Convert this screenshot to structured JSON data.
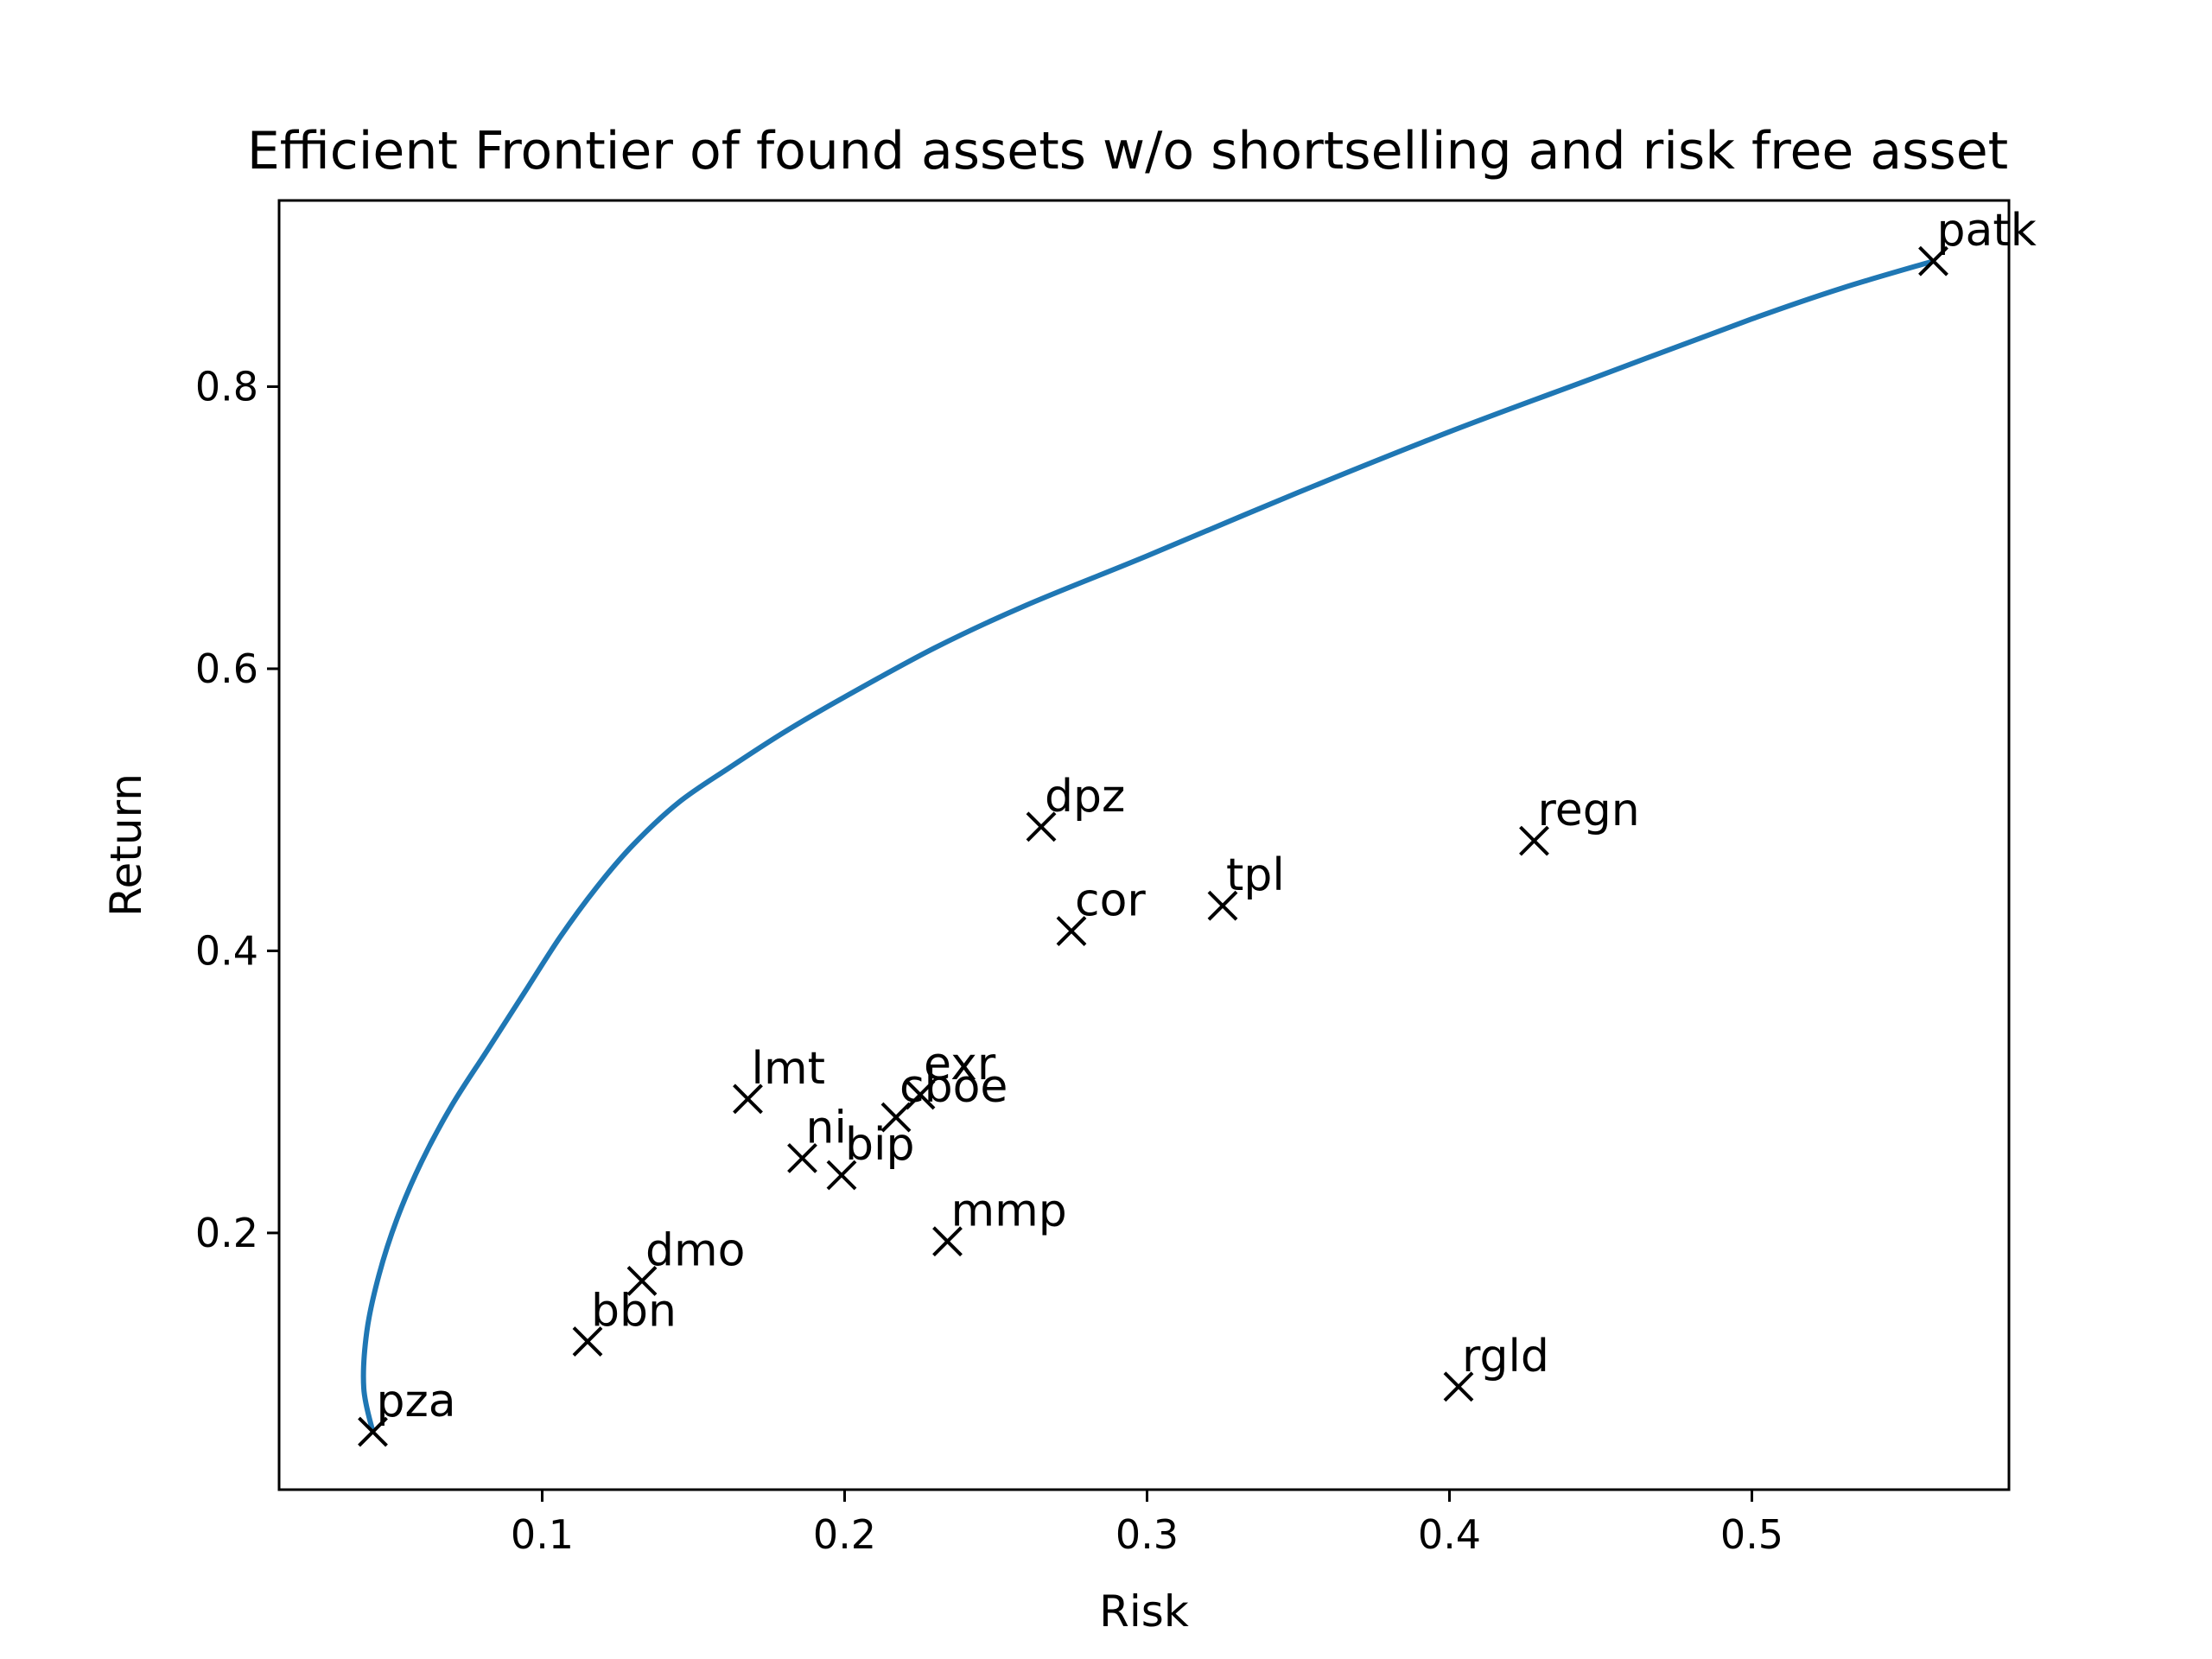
{
  "chart_data": {
    "type": "scatter",
    "title": "Efficient Frontier of found assets w/o shortselling and risk free asset",
    "xlabel": "Risk",
    "ylabel": "Return",
    "xlim": [
      0.013,
      0.585
    ],
    "ylim": [
      0.018,
      0.932
    ],
    "xticks": [
      0.1,
      0.2,
      0.3,
      0.4,
      0.5
    ],
    "yticks": [
      0.2,
      0.4,
      0.6,
      0.8
    ],
    "grid": false,
    "frontier": {
      "color": "#1f77b4",
      "x": [
        0.044,
        0.041,
        0.042,
        0.046,
        0.052,
        0.06,
        0.07,
        0.082,
        0.094,
        0.106,
        0.118,
        0.13,
        0.145,
        0.162,
        0.18,
        0.2,
        0.23,
        0.26,
        0.3,
        0.35,
        0.4,
        0.45,
        0.5,
        0.53,
        0.56
      ],
      "y": [
        0.059,
        0.09,
        0.13,
        0.17,
        0.21,
        0.25,
        0.29,
        0.33,
        0.37,
        0.41,
        0.445,
        0.475,
        0.505,
        0.53,
        0.555,
        0.58,
        0.615,
        0.645,
        0.68,
        0.725,
        0.768,
        0.808,
        0.848,
        0.87,
        0.889
      ]
    },
    "points": [
      {
        "label": "patk",
        "x": 0.56,
        "y": 0.889
      },
      {
        "label": "dpz",
        "x": 0.265,
        "y": 0.488
      },
      {
        "label": "regn",
        "x": 0.428,
        "y": 0.478
      },
      {
        "label": "cor",
        "x": 0.275,
        "y": 0.414
      },
      {
        "label": "tpl",
        "x": 0.325,
        "y": 0.432
      },
      {
        "label": "lmt",
        "x": 0.168,
        "y": 0.295
      },
      {
        "label": "exr",
        "x": 0.225,
        "y": 0.298
      },
      {
        "label": "cboe",
        "x": 0.217,
        "y": 0.282
      },
      {
        "label": "ni",
        "x": 0.186,
        "y": 0.253
      },
      {
        "label": "bip",
        "x": 0.199,
        "y": 0.241
      },
      {
        "label": "mmp",
        "x": 0.234,
        "y": 0.194
      },
      {
        "label": "dmo",
        "x": 0.133,
        "y": 0.166
      },
      {
        "label": "bbn",
        "x": 0.115,
        "y": 0.123
      },
      {
        "label": "rgld",
        "x": 0.403,
        "y": 0.091
      },
      {
        "label": "pza",
        "x": 0.044,
        "y": 0.059
      }
    ],
    "marker": "x",
    "marker_color": "#000000"
  }
}
